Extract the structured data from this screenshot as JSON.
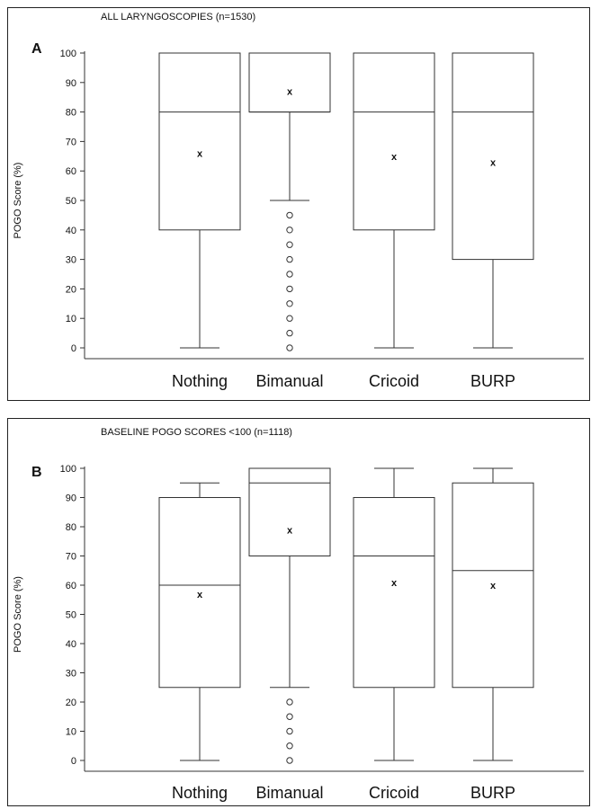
{
  "chart_data": [
    {
      "type": "box",
      "panel_label": "A",
      "title": "ALL LARYNGOSCOPIES (n=1530)",
      "ylabel": "POGO Score (%)",
      "ylim": [
        0,
        100
      ],
      "yticks": [
        0,
        10,
        20,
        30,
        40,
        50,
        60,
        70,
        80,
        90,
        100
      ],
      "categories": [
        "Nothing",
        "Bimanual",
        "Cricoid",
        "BURP"
      ],
      "boxes": [
        {
          "whisker_low": 0,
          "q1": 40,
          "median": 80,
          "q3": 100,
          "whisker_high": 100,
          "mean": 66,
          "outliers": []
        },
        {
          "whisker_low": 50,
          "q1": 80,
          "median": 80,
          "q3": 100,
          "whisker_high": 100,
          "mean": 87,
          "outliers": [
            0,
            5,
            10,
            15,
            20,
            25,
            30,
            35,
            40,
            45
          ]
        },
        {
          "whisker_low": 0,
          "q1": 40,
          "median": 80,
          "q3": 100,
          "whisker_high": 100,
          "mean": 65,
          "outliers": []
        },
        {
          "whisker_low": 0,
          "q1": 30,
          "median": 80,
          "q3": 100,
          "whisker_high": 100,
          "mean": 63,
          "outliers": []
        }
      ],
      "mean_marker": "x",
      "outlier_marker": "o"
    },
    {
      "type": "box",
      "panel_label": "B",
      "title": "BASELINE POGO SCORES  <100  (n=1118)",
      "ylabel": "POGO Score (%)",
      "ylim": [
        0,
        100
      ],
      "yticks": [
        0,
        10,
        20,
        30,
        40,
        50,
        60,
        70,
        80,
        90,
        100
      ],
      "categories": [
        "Nothing",
        "Bimanual",
        "Cricoid",
        "BURP"
      ],
      "boxes": [
        {
          "whisker_low": 0,
          "q1": 25,
          "median": 60,
          "q3": 90,
          "whisker_high": 95,
          "mean": 57,
          "outliers": []
        },
        {
          "whisker_low": 25,
          "q1": 70,
          "median": 95,
          "q3": 100,
          "whisker_high": 100,
          "mean": 79,
          "outliers": [
            0,
            5,
            10,
            15,
            20
          ]
        },
        {
          "whisker_low": 0,
          "q1": 25,
          "median": 70,
          "q3": 90,
          "whisker_high": 100,
          "mean": 61,
          "outliers": []
        },
        {
          "whisker_low": 0,
          "q1": 25,
          "median": 65,
          "q3": 95,
          "whisker_high": 100,
          "mean": 60,
          "outliers": []
        }
      ],
      "mean_marker": "x",
      "outlier_marker": "o"
    }
  ]
}
